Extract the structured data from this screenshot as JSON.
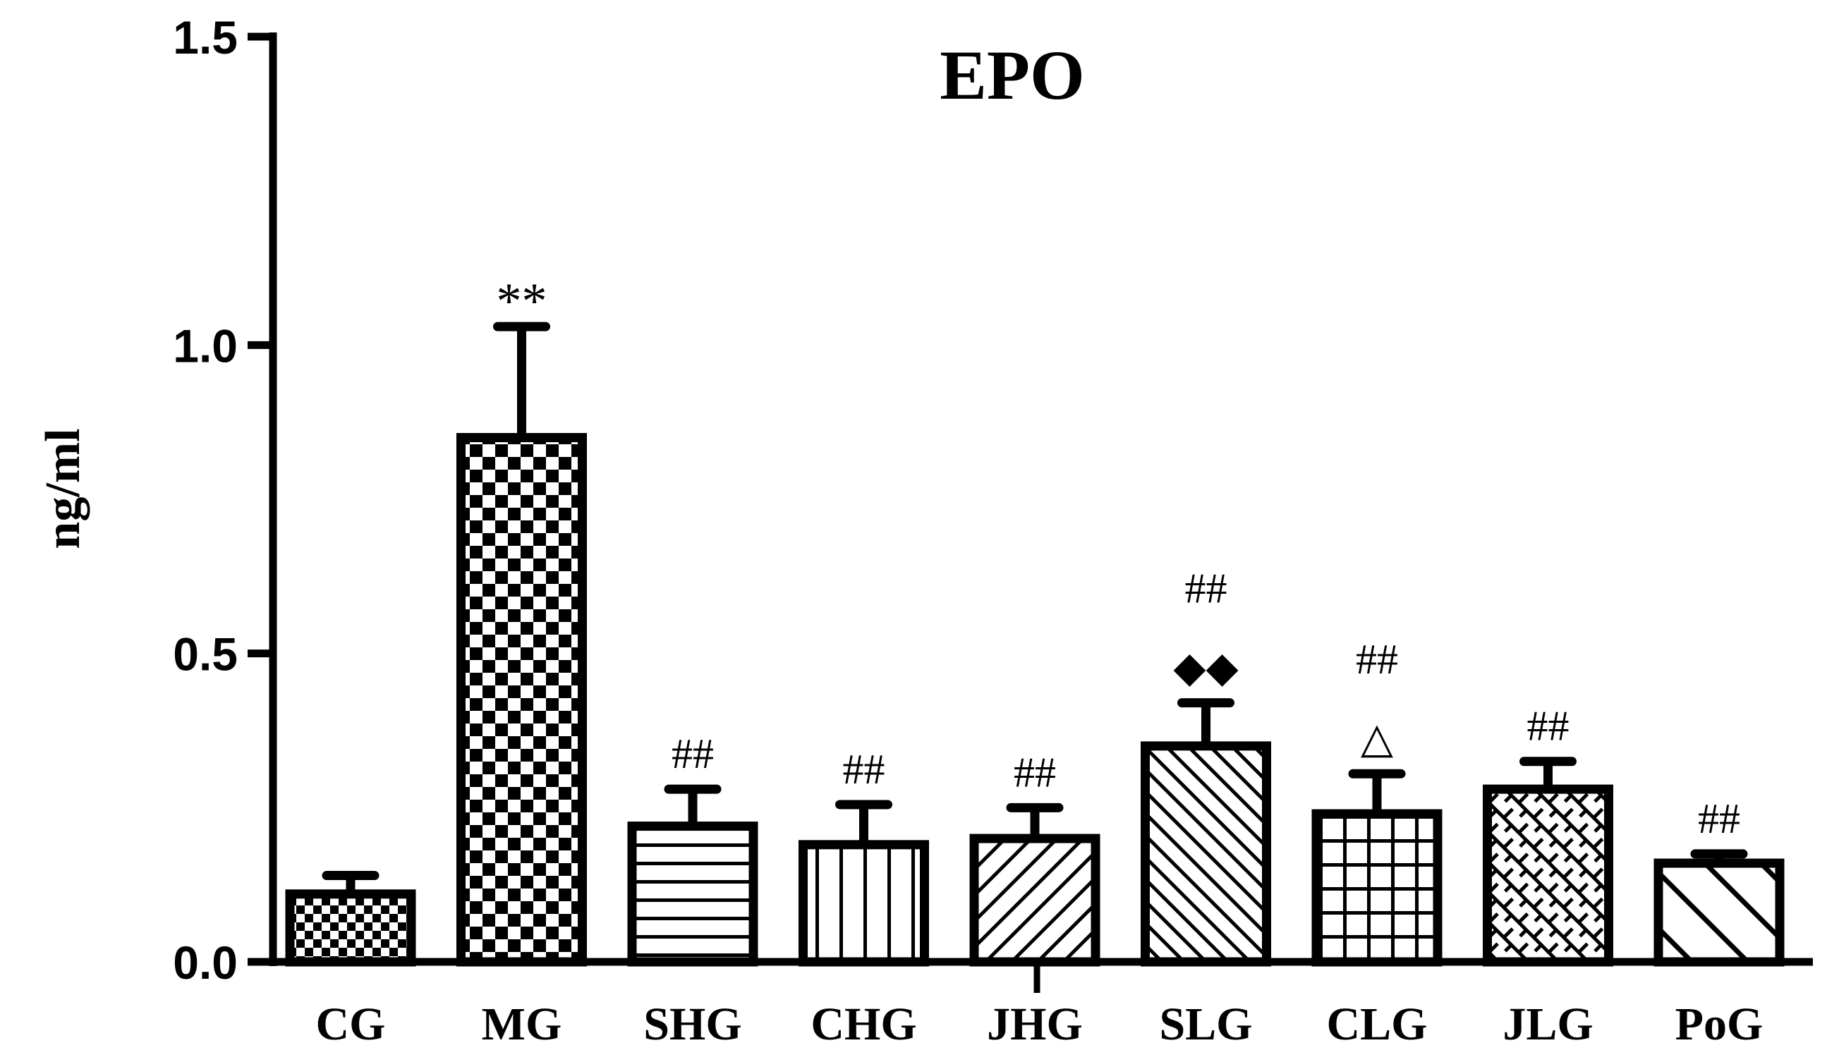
{
  "chart_data": {
    "type": "bar",
    "title": "EPO",
    "xlabel": "",
    "ylabel": "ng/ml",
    "ylim": [
      0,
      1.5
    ],
    "yticks": [
      "0.0",
      "0.5",
      "1.0",
      "1.5"
    ],
    "categories": [
      "CG",
      "MG",
      "SHG",
      "CHG",
      "JHG",
      "SLG",
      "CLG",
      "JLG",
      "PoG"
    ],
    "values": [
      0.11,
      0.85,
      0.22,
      0.19,
      0.2,
      0.35,
      0.24,
      0.28,
      0.16
    ],
    "errors": [
      0.03,
      0.18,
      0.06,
      0.065,
      0.05,
      0.07,
      0.065,
      0.045,
      0.015
    ],
    "patterns": [
      "small-checker",
      "checker",
      "horizontal-lines",
      "vertical-lines",
      "diagonal-right",
      "diagonal-left",
      "grid",
      "brick-diagonal",
      "wide-diagonal-left"
    ],
    "annotations": [
      {
        "category": "MG",
        "lines": [
          "**"
        ]
      },
      {
        "category": "SHG",
        "lines": [
          "##"
        ]
      },
      {
        "category": "CHG",
        "lines": [
          "##"
        ]
      },
      {
        "category": "JHG",
        "lines": [
          "##"
        ]
      },
      {
        "category": "SLG",
        "lines": [
          "##",
          "◆◆"
        ]
      },
      {
        "category": "CLG",
        "lines": [
          "##",
          "△"
        ]
      },
      {
        "category": "JLG",
        "lines": [
          "##"
        ]
      },
      {
        "category": "PoG",
        "lines": [
          "##"
        ]
      }
    ],
    "grid": false,
    "colors": {
      "ink": "#000000",
      "background": "#ffffff"
    }
  }
}
